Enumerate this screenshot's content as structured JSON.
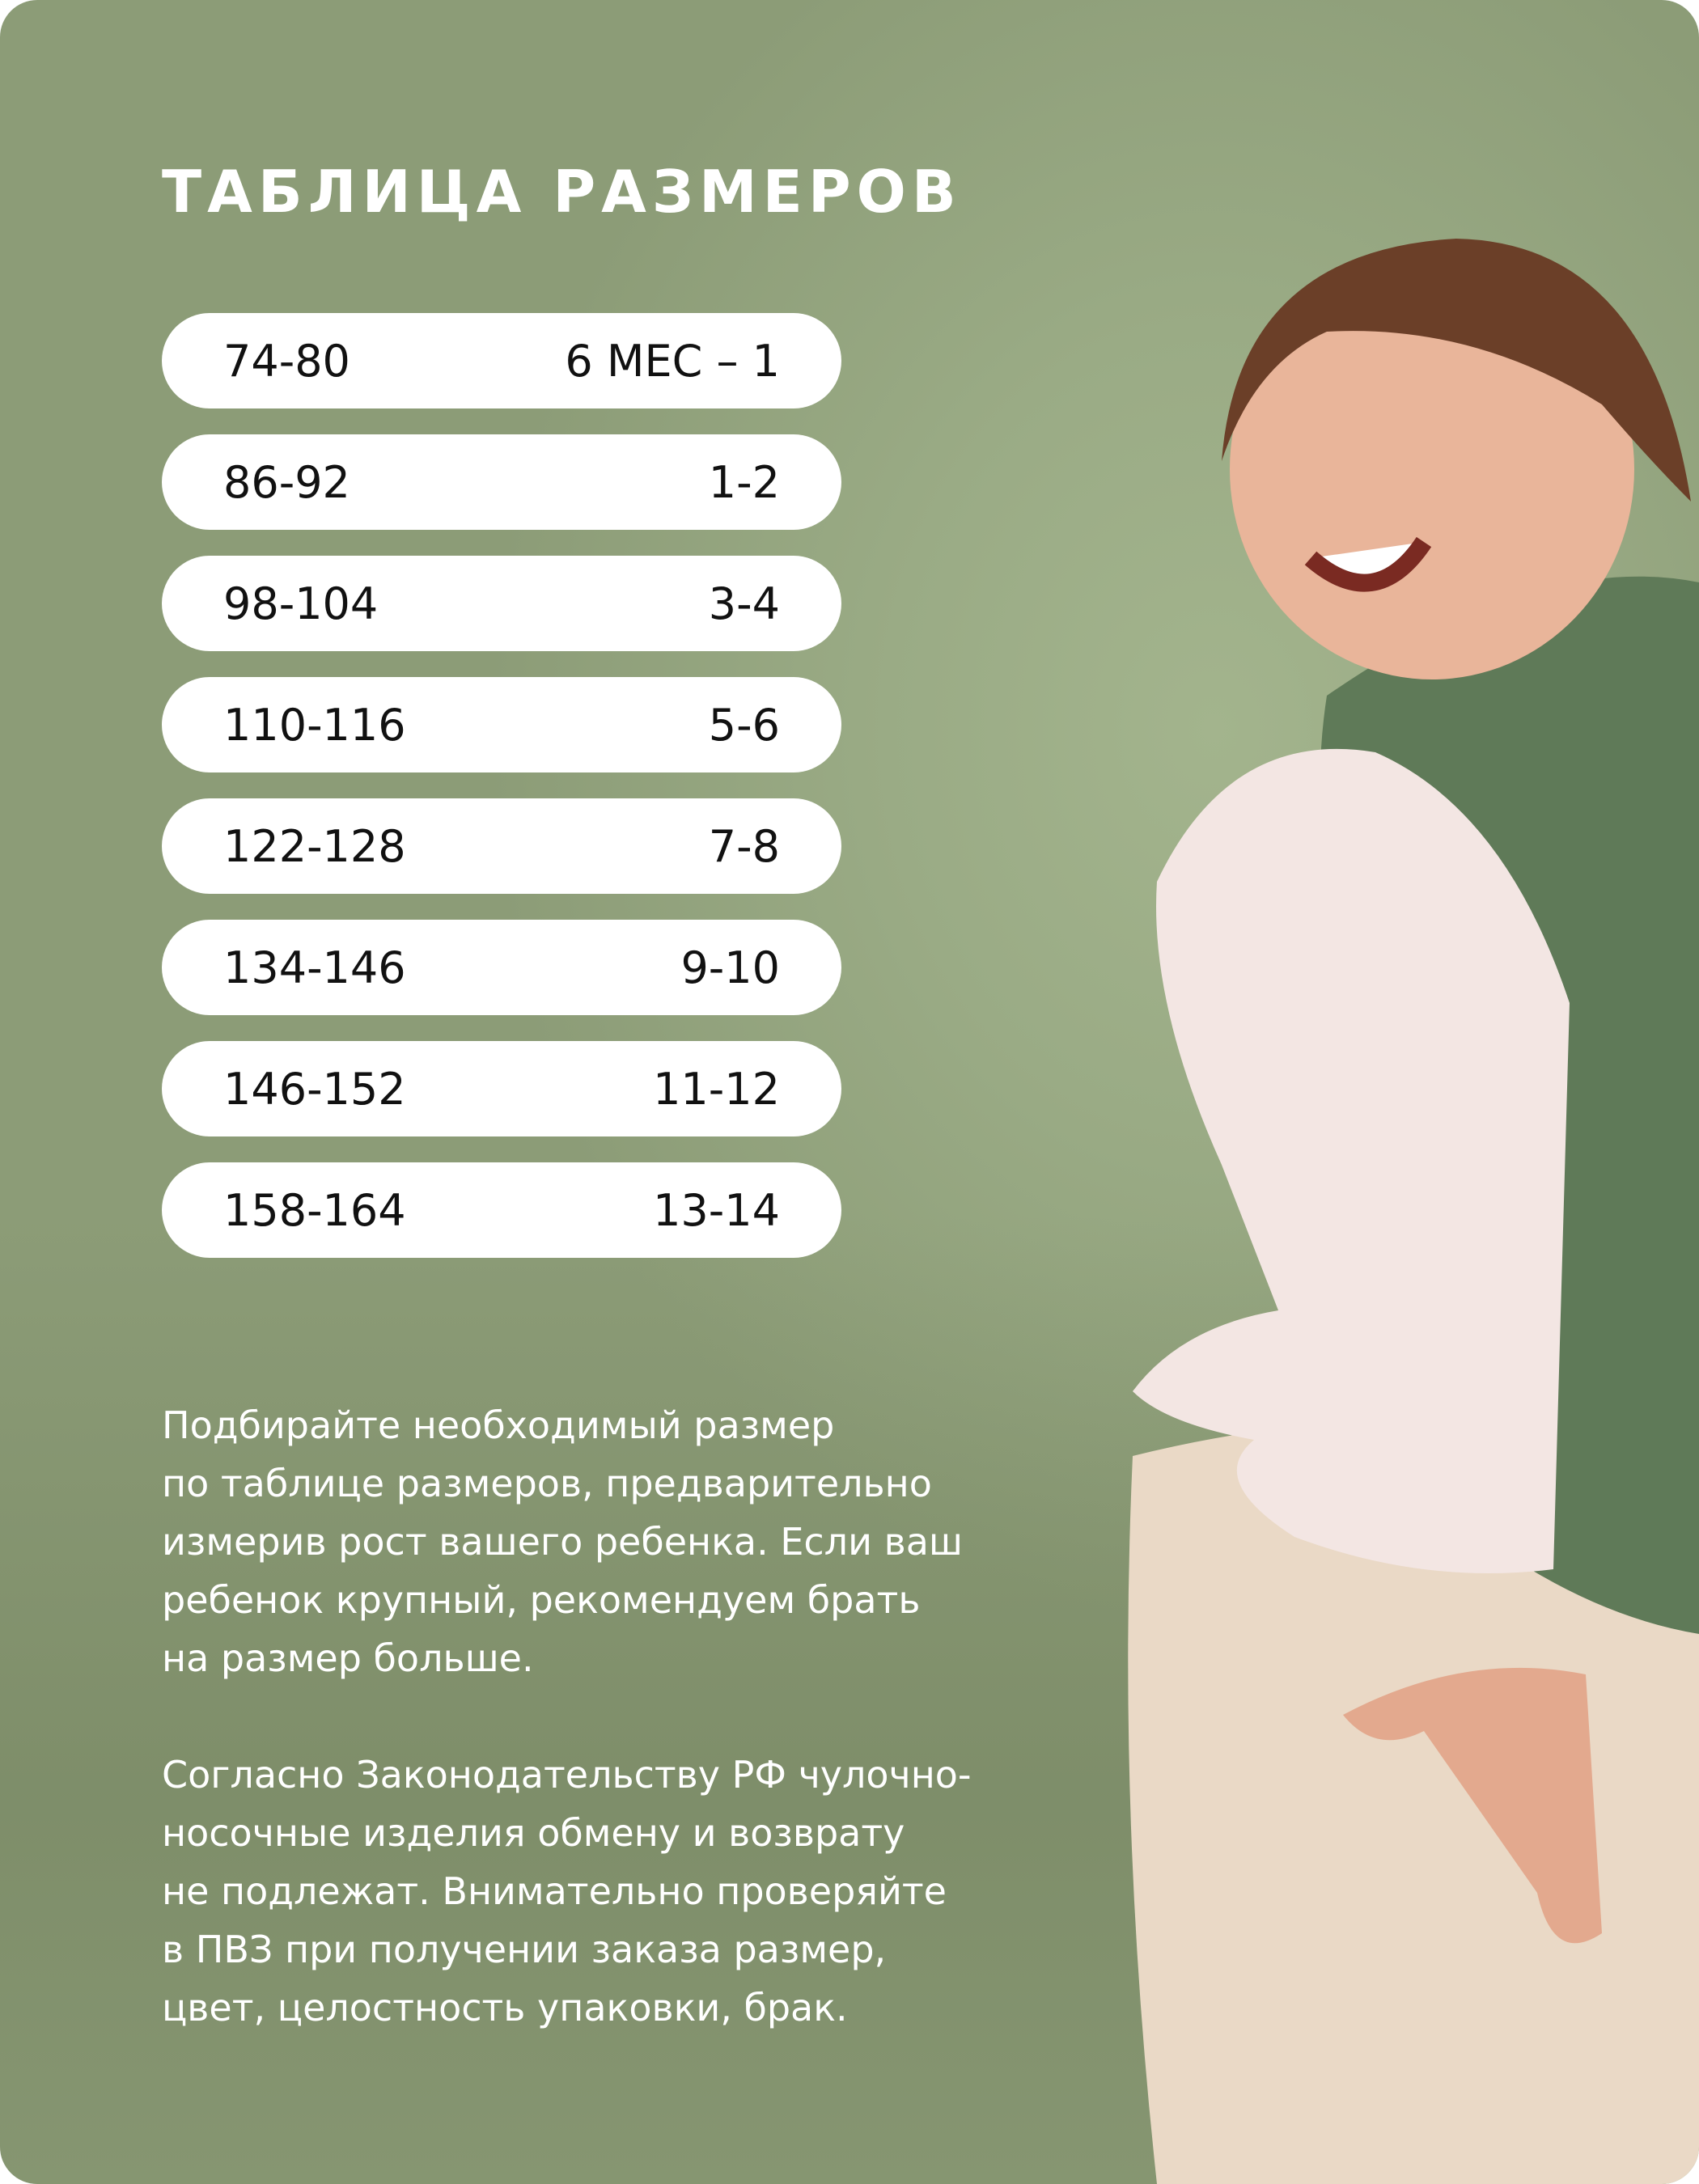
{
  "title": "ТАБЛИЦА РАЗМЕРОВ",
  "size_table": [
    {
      "height": "74-80",
      "age": "6 МЕС – 1"
    },
    {
      "height": "86-92",
      "age": "1-2"
    },
    {
      "height": "98-104",
      "age": "3-4"
    },
    {
      "height": "110-116",
      "age": "5-6"
    },
    {
      "height": "122-128",
      "age": "7-8"
    },
    {
      "height": "134-146",
      "age": "9-10"
    },
    {
      "height": "146-152",
      "age": "11-12"
    },
    {
      "height": "158-164",
      "age": "13-14"
    }
  ],
  "paragraph_1": [
    "Подбирайте необходимый размер",
    "по таблице размеров, предварительно",
    "измерив рост вашего ребенка. Если ваш",
    "ребенок крупный, рекомендуем брать",
    "на размер больше."
  ],
  "paragraph_2": [
    "Согласно Законодательству РФ чулочно-",
    "носочные изделия обмену и возврату",
    "не подлежат. Внимательно проверяйте",
    "в ПВЗ при получении заказа размер,",
    "цвет, целостность упаковки, брак."
  ],
  "colors": {
    "background": "#9aab85",
    "pill": "#ffffff",
    "title": "#ffffff"
  }
}
